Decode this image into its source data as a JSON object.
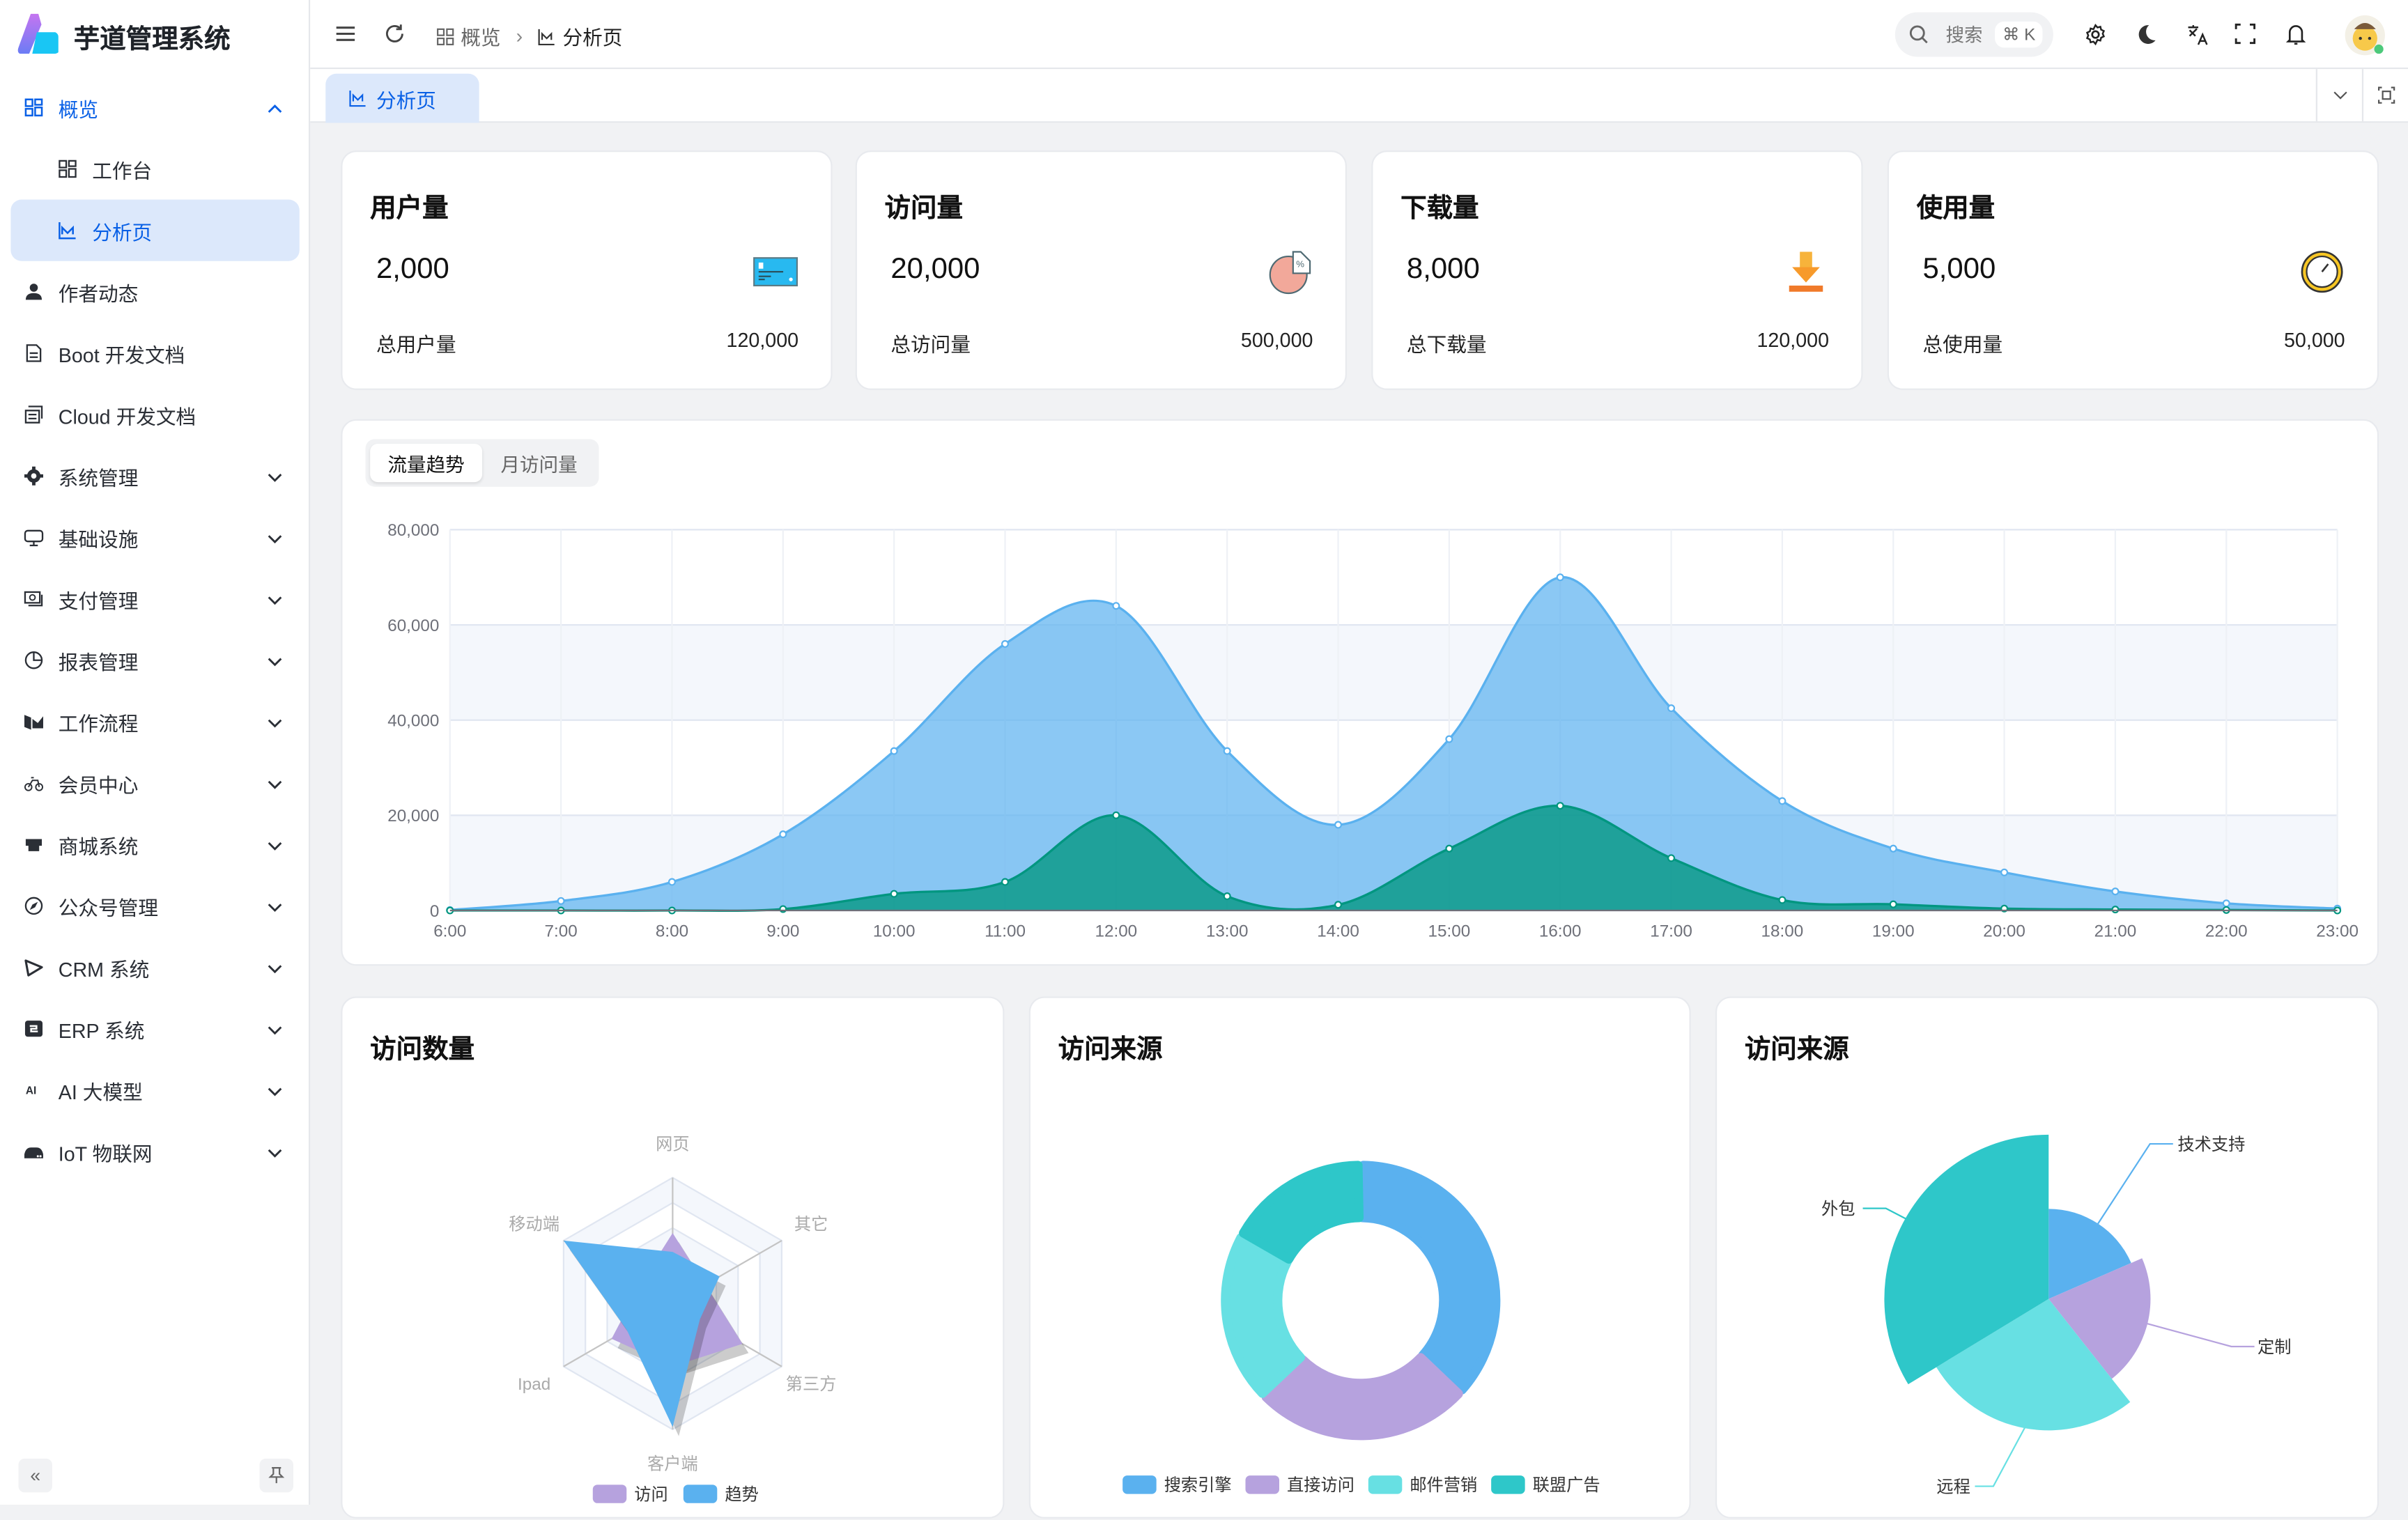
{
  "app": {
    "title": "芋道管理系统"
  },
  "sidebar": {
    "items": [
      {
        "label": "概览",
        "icon": "dashboard-icon",
        "expanded": true,
        "state": "active-parent"
      },
      {
        "label": "工作台",
        "icon": "workspace-icon",
        "sub": true
      },
      {
        "label": "分析页",
        "icon": "chart-line-icon",
        "sub": true,
        "state": "active"
      },
      {
        "label": "作者动态",
        "icon": "user-icon"
      },
      {
        "label": "Boot 开发文档",
        "icon": "document-icon"
      },
      {
        "label": "Cloud 开发文档",
        "icon": "documents-icon"
      },
      {
        "label": "系统管理",
        "icon": "gear-icon",
        "collapsible": true
      },
      {
        "label": "基础设施",
        "icon": "monitor-icon",
        "collapsible": true
      },
      {
        "label": "支付管理",
        "icon": "money-icon",
        "collapsible": true
      },
      {
        "label": "报表管理",
        "icon": "pie-chart-icon",
        "collapsible": true
      },
      {
        "label": "工作流程",
        "icon": "workflow-icon",
        "collapsible": true
      },
      {
        "label": "会员中心",
        "icon": "bicycle-icon",
        "collapsible": true
      },
      {
        "label": "商城系统",
        "icon": "shop-icon",
        "collapsible": true
      },
      {
        "label": "公众号管理",
        "icon": "compass-icon",
        "collapsible": true
      },
      {
        "label": "CRM 系统",
        "icon": "play-icon",
        "collapsible": true
      },
      {
        "label": "ERP 系统",
        "icon": "erp-icon",
        "collapsible": true
      },
      {
        "label": "AI 大模型",
        "icon": "ai-icon",
        "collapsible": true
      },
      {
        "label": "IoT 物联网",
        "icon": "router-icon",
        "collapsible": true
      }
    ],
    "collapse_label": "«"
  },
  "header": {
    "breadcrumb": [
      {
        "label": "概览"
      },
      {
        "label": "分析页"
      }
    ],
    "search": {
      "placeholder": "搜索",
      "shortcut": "⌘ K"
    }
  },
  "tabs": [
    {
      "label": "分析页",
      "active": true
    }
  ],
  "stats": [
    {
      "title": "用户量",
      "value": "2,000",
      "footer_label": "总用户量",
      "footer_value": "120,000",
      "icon": "credit-card-icon"
    },
    {
      "title": "访问量",
      "value": "20,000",
      "footer_label": "总访问量",
      "footer_value": "500,000",
      "icon": "pie-percent-icon"
    },
    {
      "title": "下载量",
      "value": "8,000",
      "footer_label": "总下载量",
      "footer_value": "120,000",
      "icon": "download-icon"
    },
    {
      "title": "使用量",
      "value": "5,000",
      "footer_label": "总使用量",
      "footer_value": "50,000",
      "icon": "clock-icon"
    }
  ],
  "trend_tabs": [
    {
      "label": "流量趋势",
      "active": true
    },
    {
      "label": "月访问量",
      "active": false
    }
  ],
  "cards": {
    "radar_title": "访问数量",
    "donut_title": "访问来源",
    "rose_title": "访问来源"
  },
  "colors": {
    "primary": "#0960e6",
    "blue": "#5ab1ef",
    "purple": "#b6a2de",
    "cyan": "#67e0e3",
    "teal": "#2ec7c9",
    "green": "#019680"
  },
  "chart_data": [
    {
      "type": "area",
      "x": [
        "6:00",
        "7:00",
        "8:00",
        "9:00",
        "10:00",
        "11:00",
        "12:00",
        "13:00",
        "14:00",
        "15:00",
        "16:00",
        "17:00",
        "18:00",
        "19:00",
        "20:00",
        "21:00",
        "22:00",
        "23:00"
      ],
      "yticks": [
        "0",
        "20,000",
        "40,000",
        "60,000",
        "80,000"
      ],
      "ylim": [
        0,
        80000
      ],
      "grid": true,
      "series": [
        {
          "values": [
            100,
            2000,
            6000,
            16000,
            33500,
            56000,
            64000,
            33500,
            18000,
            36000,
            70000,
            42500,
            23000,
            13000,
            8000,
            4000,
            1500,
            400
          ],
          "color": "#5ab1ef"
        },
        {
          "values": [
            0,
            0,
            0,
            300,
            3500,
            6000,
            20000,
            3000,
            1200,
            13000,
            22000,
            11000,
            2200,
            1300,
            400,
            200,
            100,
            0
          ],
          "color": "#019680"
        }
      ]
    },
    {
      "type": "radar",
      "indicators": [
        "网页",
        "其它",
        "第三方",
        "客户端",
        "Ipad",
        "移动端"
      ],
      "max": 100,
      "series": [
        {
          "name": "访问",
          "values": [
            56,
            30,
            64,
            50,
            56,
            30
          ],
          "color": "#b6a2de"
        },
        {
          "name": "趋势",
          "values": [
            41,
            43,
            25,
            98,
            42,
            100
          ],
          "color": "#5ab1ef"
        }
      ],
      "legend": "bottom"
    },
    {
      "type": "pie",
      "variant": "donut",
      "slices": [
        {
          "name": "搜索引擎",
          "value": 1048,
          "color": "#5ab1ef"
        },
        {
          "name": "直接访问",
          "value": 735,
          "color": "#b6a2de"
        },
        {
          "name": "邮件营销",
          "value": 580,
          "color": "#67e0e3"
        },
        {
          "name": "联盟广告",
          "value": 484,
          "color": "#2ec7c9"
        }
      ],
      "legend": "bottom"
    },
    {
      "type": "pie",
      "variant": "rose",
      "slices": [
        {
          "name": "技术支持",
          "value": 274,
          "color": "#5ab1ef"
        },
        {
          "name": "定制",
          "value": 310,
          "color": "#b6a2de"
        },
        {
          "name": "远程",
          "value": 400,
          "color": "#67e0e3"
        },
        {
          "name": "外包",
          "value": 500,
          "color": "#2ec7c9"
        }
      ]
    }
  ]
}
